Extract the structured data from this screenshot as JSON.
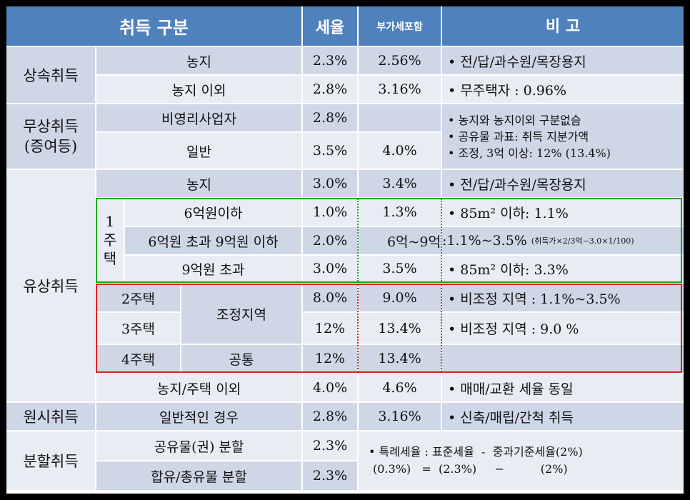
{
  "header": {
    "category": "취득 구분",
    "rate": "세율",
    "vat_incl": "부가세포함",
    "remarks": "비 고"
  },
  "inheritance": {
    "label": "상속취득",
    "rows": [
      {
        "item": "농지",
        "rate": "2.3%",
        "vat": "2.56%",
        "note": "• 전/답/과수원/목장용지"
      },
      {
        "item": "농지 이외",
        "rate": "2.8%",
        "vat": "3.16%",
        "note": "• 무주택자 : 0.96%"
      }
    ]
  },
  "gift": {
    "label_line1": "무상취득",
    "label_line2": "(증여등)",
    "rows": [
      {
        "item": "비영리사업자",
        "rate": "2.8%",
        "vat": ""
      },
      {
        "item": "일반",
        "rate": "3.5%",
        "vat": "4.0%"
      }
    ],
    "notes": [
      "• 농지와 농지이외 구분없슴",
      "• 공유물 과표: 취득 지분가액",
      "• 조정, 3억 이상: 12% (13.4%)"
    ]
  },
  "purchase": {
    "label": "유상취득",
    "farm": {
      "item": "농지",
      "rate": "3.0%",
      "vat": "3.4%",
      "note": "• 전/답/과수원/목장용지"
    },
    "one_house": {
      "label": [
        "1",
        "주",
        "택"
      ],
      "rows": [
        {
          "item": "6억원이하",
          "rate": "1.0%",
          "vat": "1.3%",
          "note": "• 85m² 이하: 1.1%"
        },
        {
          "item": "6억원 초과 9억원 이하",
          "rate": "2.0%",
          "vat": "6억~9억",
          "note": ":1.1%~3.5%",
          "note_small": "(취득가×2/3억−3.0×1/100)"
        },
        {
          "item": "9억원 초과",
          "rate": "3.0%",
          "vat": "3.5%",
          "note": "• 85m² 이하: 3.3%"
        }
      ]
    },
    "multi": {
      "house2": "2주택",
      "house3": "3주택",
      "house4": "4주택",
      "zone": "조정지역",
      "common": "공통",
      "rates": [
        "8.0%",
        "12%",
        "12%"
      ],
      "vats": [
        "9.0%",
        "13.4%",
        "13.4%"
      ],
      "notes": [
        "• 비조정 지역 : 1.1%~3.5%",
        "• 비조정 지역 : 9.0 %",
        ""
      ]
    },
    "other": {
      "item": "농지/주택 이외",
      "rate": "4.0%",
      "vat": "4.6%",
      "note": "• 매매/교환 세율 동일"
    }
  },
  "original": {
    "label": "원시취득",
    "item": "일반적인 경우",
    "rate": "2.8%",
    "vat": "3.16%",
    "note": "• 신축/매립/간척 취득"
  },
  "partition": {
    "label": "분할취득",
    "rows": [
      {
        "item": "공유물(권) 분할",
        "rate": "2.3%"
      },
      {
        "item": "합유/총유물 분할",
        "rate": "2.3%"
      }
    ],
    "note_line1": "• 특례세율 : 표준세율  -  중과기준세율(2%)",
    "note_line2": "(0.3%)   =  (2.3%)     −          (2%)"
  },
  "colors": {
    "header": "#4f81bd",
    "row_dark": "#cfd7e6",
    "row_light": "#e8ecf3",
    "one_house_box": "#1aaa1a",
    "multi_house_box": "#e02020"
  }
}
